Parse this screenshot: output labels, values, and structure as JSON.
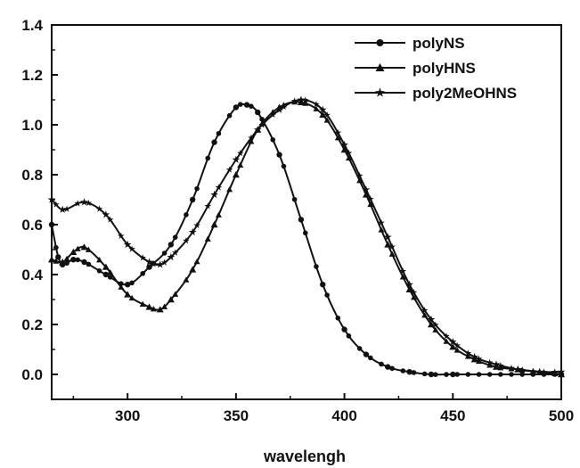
{
  "chart_data": {
    "type": "line",
    "title": "",
    "xlabel": "wavelengh",
    "ylabel": "",
    "xlim": [
      265,
      500
    ],
    "ylim": [
      -0.1,
      1.4
    ],
    "x_ticks": [
      300,
      350,
      400,
      450,
      500
    ],
    "y_ticks": [
      0.0,
      0.2,
      0.4,
      0.6,
      0.8,
      1.0,
      1.2,
      1.4
    ],
    "x_tick_labels": [
      "300",
      "350",
      "400",
      "450",
      "500"
    ],
    "y_tick_labels": [
      "0.0",
      "0.2",
      "0.4",
      "0.6",
      "0.8",
      "1.0",
      "1.2",
      "1.4"
    ],
    "grid": false,
    "legend_position": "top-right",
    "series": [
      {
        "name": "polyNS",
        "marker": "circle",
        "points": [
          [
            265,
            0.6
          ],
          [
            268,
            0.47
          ],
          [
            270,
            0.44
          ],
          [
            275,
            0.46
          ],
          [
            280,
            0.45
          ],
          [
            290,
            0.4
          ],
          [
            300,
            0.36
          ],
          [
            310,
            0.43
          ],
          [
            320,
            0.52
          ],
          [
            330,
            0.7
          ],
          [
            340,
            0.93
          ],
          [
            350,
            1.07
          ],
          [
            355,
            1.08
          ],
          [
            360,
            1.05
          ],
          [
            370,
            0.88
          ],
          [
            380,
            0.62
          ],
          [
            390,
            0.36
          ],
          [
            400,
            0.18
          ],
          [
            410,
            0.08
          ],
          [
            420,
            0.03
          ],
          [
            430,
            0.01
          ],
          [
            440,
            0.0
          ],
          [
            450,
            0.0
          ],
          [
            500,
            0.0
          ]
        ]
      },
      {
        "name": "polyHNS",
        "marker": "triangle",
        "points": [
          [
            265,
            0.46
          ],
          [
            270,
            0.45
          ],
          [
            275,
            0.49
          ],
          [
            280,
            0.51
          ],
          [
            290,
            0.43
          ],
          [
            300,
            0.32
          ],
          [
            310,
            0.27
          ],
          [
            315,
            0.26
          ],
          [
            320,
            0.3
          ],
          [
            330,
            0.42
          ],
          [
            340,
            0.6
          ],
          [
            350,
            0.8
          ],
          [
            360,
            0.98
          ],
          [
            370,
            1.07
          ],
          [
            380,
            1.09
          ],
          [
            390,
            1.04
          ],
          [
            400,
            0.9
          ],
          [
            410,
            0.72
          ],
          [
            420,
            0.52
          ],
          [
            430,
            0.34
          ],
          [
            440,
            0.2
          ],
          [
            450,
            0.11
          ],
          [
            460,
            0.06
          ],
          [
            470,
            0.03
          ],
          [
            480,
            0.02
          ],
          [
            490,
            0.01
          ],
          [
            500,
            0.0
          ]
        ]
      },
      {
        "name": "poly2MeOHNS",
        "marker": "star",
        "points": [
          [
            265,
            0.7
          ],
          [
            270,
            0.66
          ],
          [
            280,
            0.69
          ],
          [
            290,
            0.64
          ],
          [
            300,
            0.52
          ],
          [
            310,
            0.45
          ],
          [
            315,
            0.44
          ],
          [
            320,
            0.47
          ],
          [
            330,
            0.57
          ],
          [
            340,
            0.72
          ],
          [
            350,
            0.86
          ],
          [
            360,
            0.98
          ],
          [
            370,
            1.06
          ],
          [
            380,
            1.1
          ],
          [
            390,
            1.06
          ],
          [
            400,
            0.92
          ],
          [
            410,
            0.74
          ],
          [
            420,
            0.55
          ],
          [
            430,
            0.36
          ],
          [
            440,
            0.22
          ],
          [
            450,
            0.13
          ],
          [
            460,
            0.07
          ],
          [
            470,
            0.04
          ],
          [
            480,
            0.02
          ],
          [
            490,
            0.01
          ],
          [
            500,
            0.01
          ]
        ]
      }
    ]
  }
}
